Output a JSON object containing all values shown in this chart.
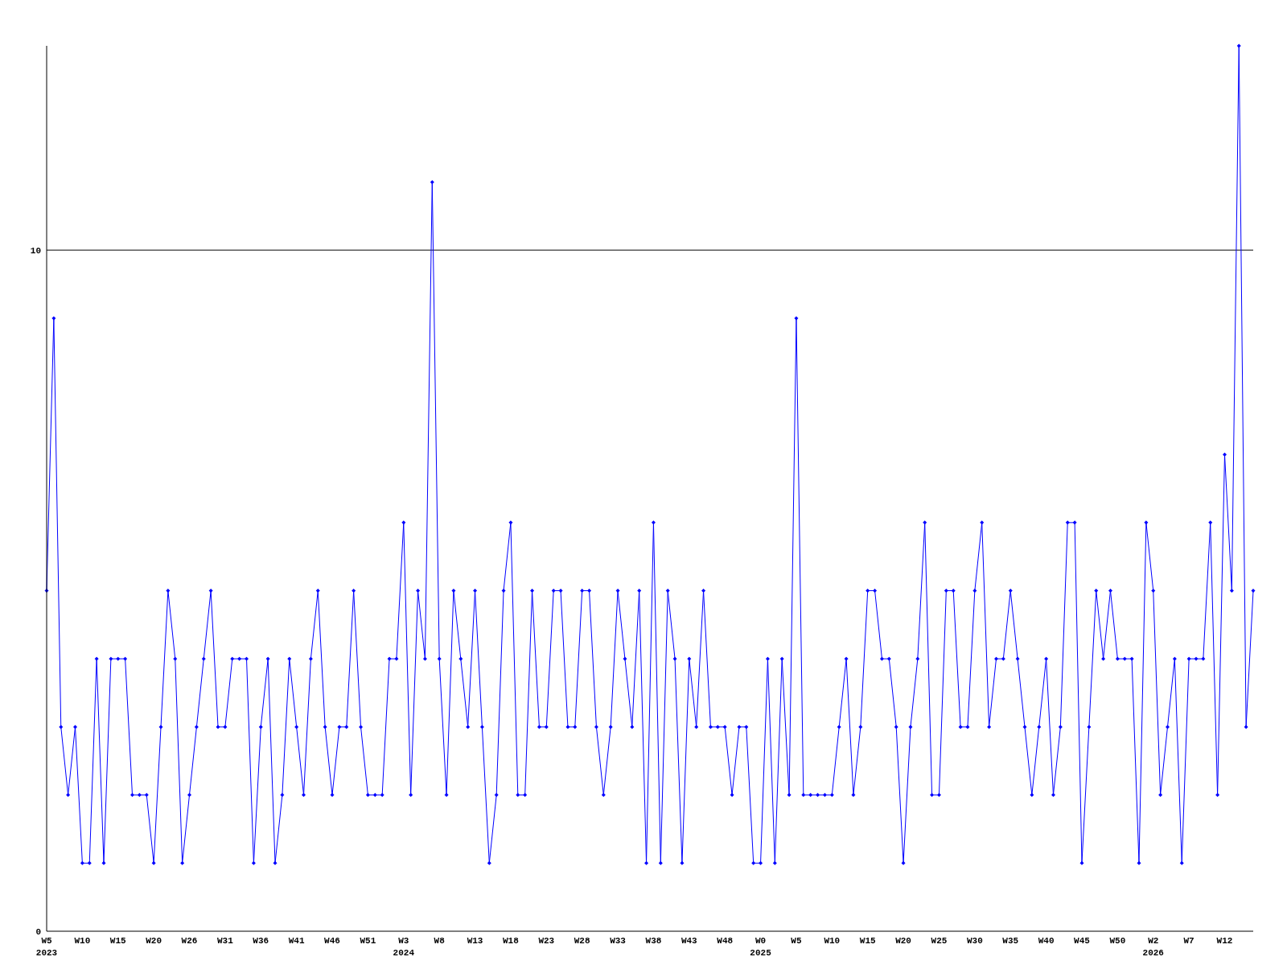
{
  "chart_data": {
    "type": "line",
    "color": "#0000ff",
    "marker": "diamond",
    "grid": "y",
    "ylim": [
      0,
      13
    ],
    "yticks": [
      0,
      10
    ],
    "categories": [
      "W5\n2023",
      null,
      null,
      null,
      null,
      "W10",
      null,
      null,
      null,
      null,
      "W15",
      null,
      null,
      null,
      null,
      "W20",
      null,
      null,
      null,
      null,
      "W26",
      null,
      null,
      null,
      null,
      "W31",
      null,
      null,
      null,
      null,
      "W36",
      null,
      null,
      null,
      null,
      "W41",
      null,
      null,
      null,
      null,
      "W46",
      null,
      null,
      null,
      null,
      "W51",
      null,
      null,
      null,
      null,
      "W3\n2024",
      null,
      null,
      null,
      null,
      "W8",
      null,
      null,
      null,
      null,
      "W13",
      null,
      null,
      null,
      null,
      "W18",
      null,
      null,
      null,
      null,
      "W23",
      null,
      null,
      null,
      null,
      "W28",
      null,
      null,
      null,
      null,
      "W33",
      null,
      null,
      null,
      null,
      "W38",
      null,
      null,
      null,
      null,
      "W43",
      null,
      null,
      null,
      null,
      "W48",
      null,
      null,
      null,
      null,
      "W0\n2025",
      null,
      null,
      null,
      null,
      "W5",
      null,
      null,
      null,
      null,
      "W10",
      null,
      null,
      null,
      null,
      "W15",
      null,
      null,
      null,
      null,
      "W20",
      null,
      null,
      null,
      null,
      "W25",
      null,
      null,
      null,
      null,
      "W30",
      null,
      null,
      null,
      null,
      "W35",
      null,
      null,
      null,
      null,
      "W40",
      null,
      null,
      null,
      null,
      "W45",
      null,
      null,
      null,
      null,
      "W50",
      null,
      null,
      null,
      null,
      "W2\n2026",
      null,
      null,
      null,
      null,
      "W7",
      null,
      null,
      null,
      null,
      "W12",
      null,
      null,
      null,
      null
    ],
    "values": [
      5,
      9,
      3,
      2,
      3,
      1,
      1,
      4,
      1,
      4,
      4,
      4,
      2,
      2,
      2,
      1,
      3,
      5,
      4,
      1,
      2,
      3,
      4,
      5,
      3,
      3,
      4,
      4,
      4,
      1,
      3,
      4,
      1,
      2,
      4,
      3,
      2,
      4,
      5,
      3,
      2,
      3,
      3,
      5,
      3,
      2,
      2,
      2,
      4,
      4,
      6,
      2,
      5,
      4,
      11,
      4,
      2,
      5,
      4,
      3,
      5,
      3,
      1,
      2,
      5,
      6,
      2,
      2,
      5,
      3,
      3,
      5,
      5,
      3,
      3,
      5,
      5,
      3,
      2,
      3,
      5,
      4,
      3,
      5,
      1,
      6,
      1,
      5,
      4,
      1,
      4,
      3,
      5,
      3,
      3,
      3,
      2,
      3,
      3,
      1,
      1,
      4,
      1,
      4,
      2,
      9,
      2,
      2,
      2,
      2,
      2,
      3,
      4,
      2,
      3,
      5,
      5,
      4,
      4,
      3,
      1,
      3,
      4,
      6,
      2,
      2,
      5,
      5,
      3,
      3,
      5,
      6,
      3,
      4,
      4,
      5,
      4,
      3,
      2,
      3,
      4,
      2,
      3,
      6,
      6,
      1,
      3,
      5,
      4,
      5,
      4,
      4,
      4,
      1,
      6,
      5,
      2,
      3,
      4,
      1,
      4,
      4,
      4,
      6,
      2,
      7,
      5,
      13,
      3,
      5
    ]
  }
}
